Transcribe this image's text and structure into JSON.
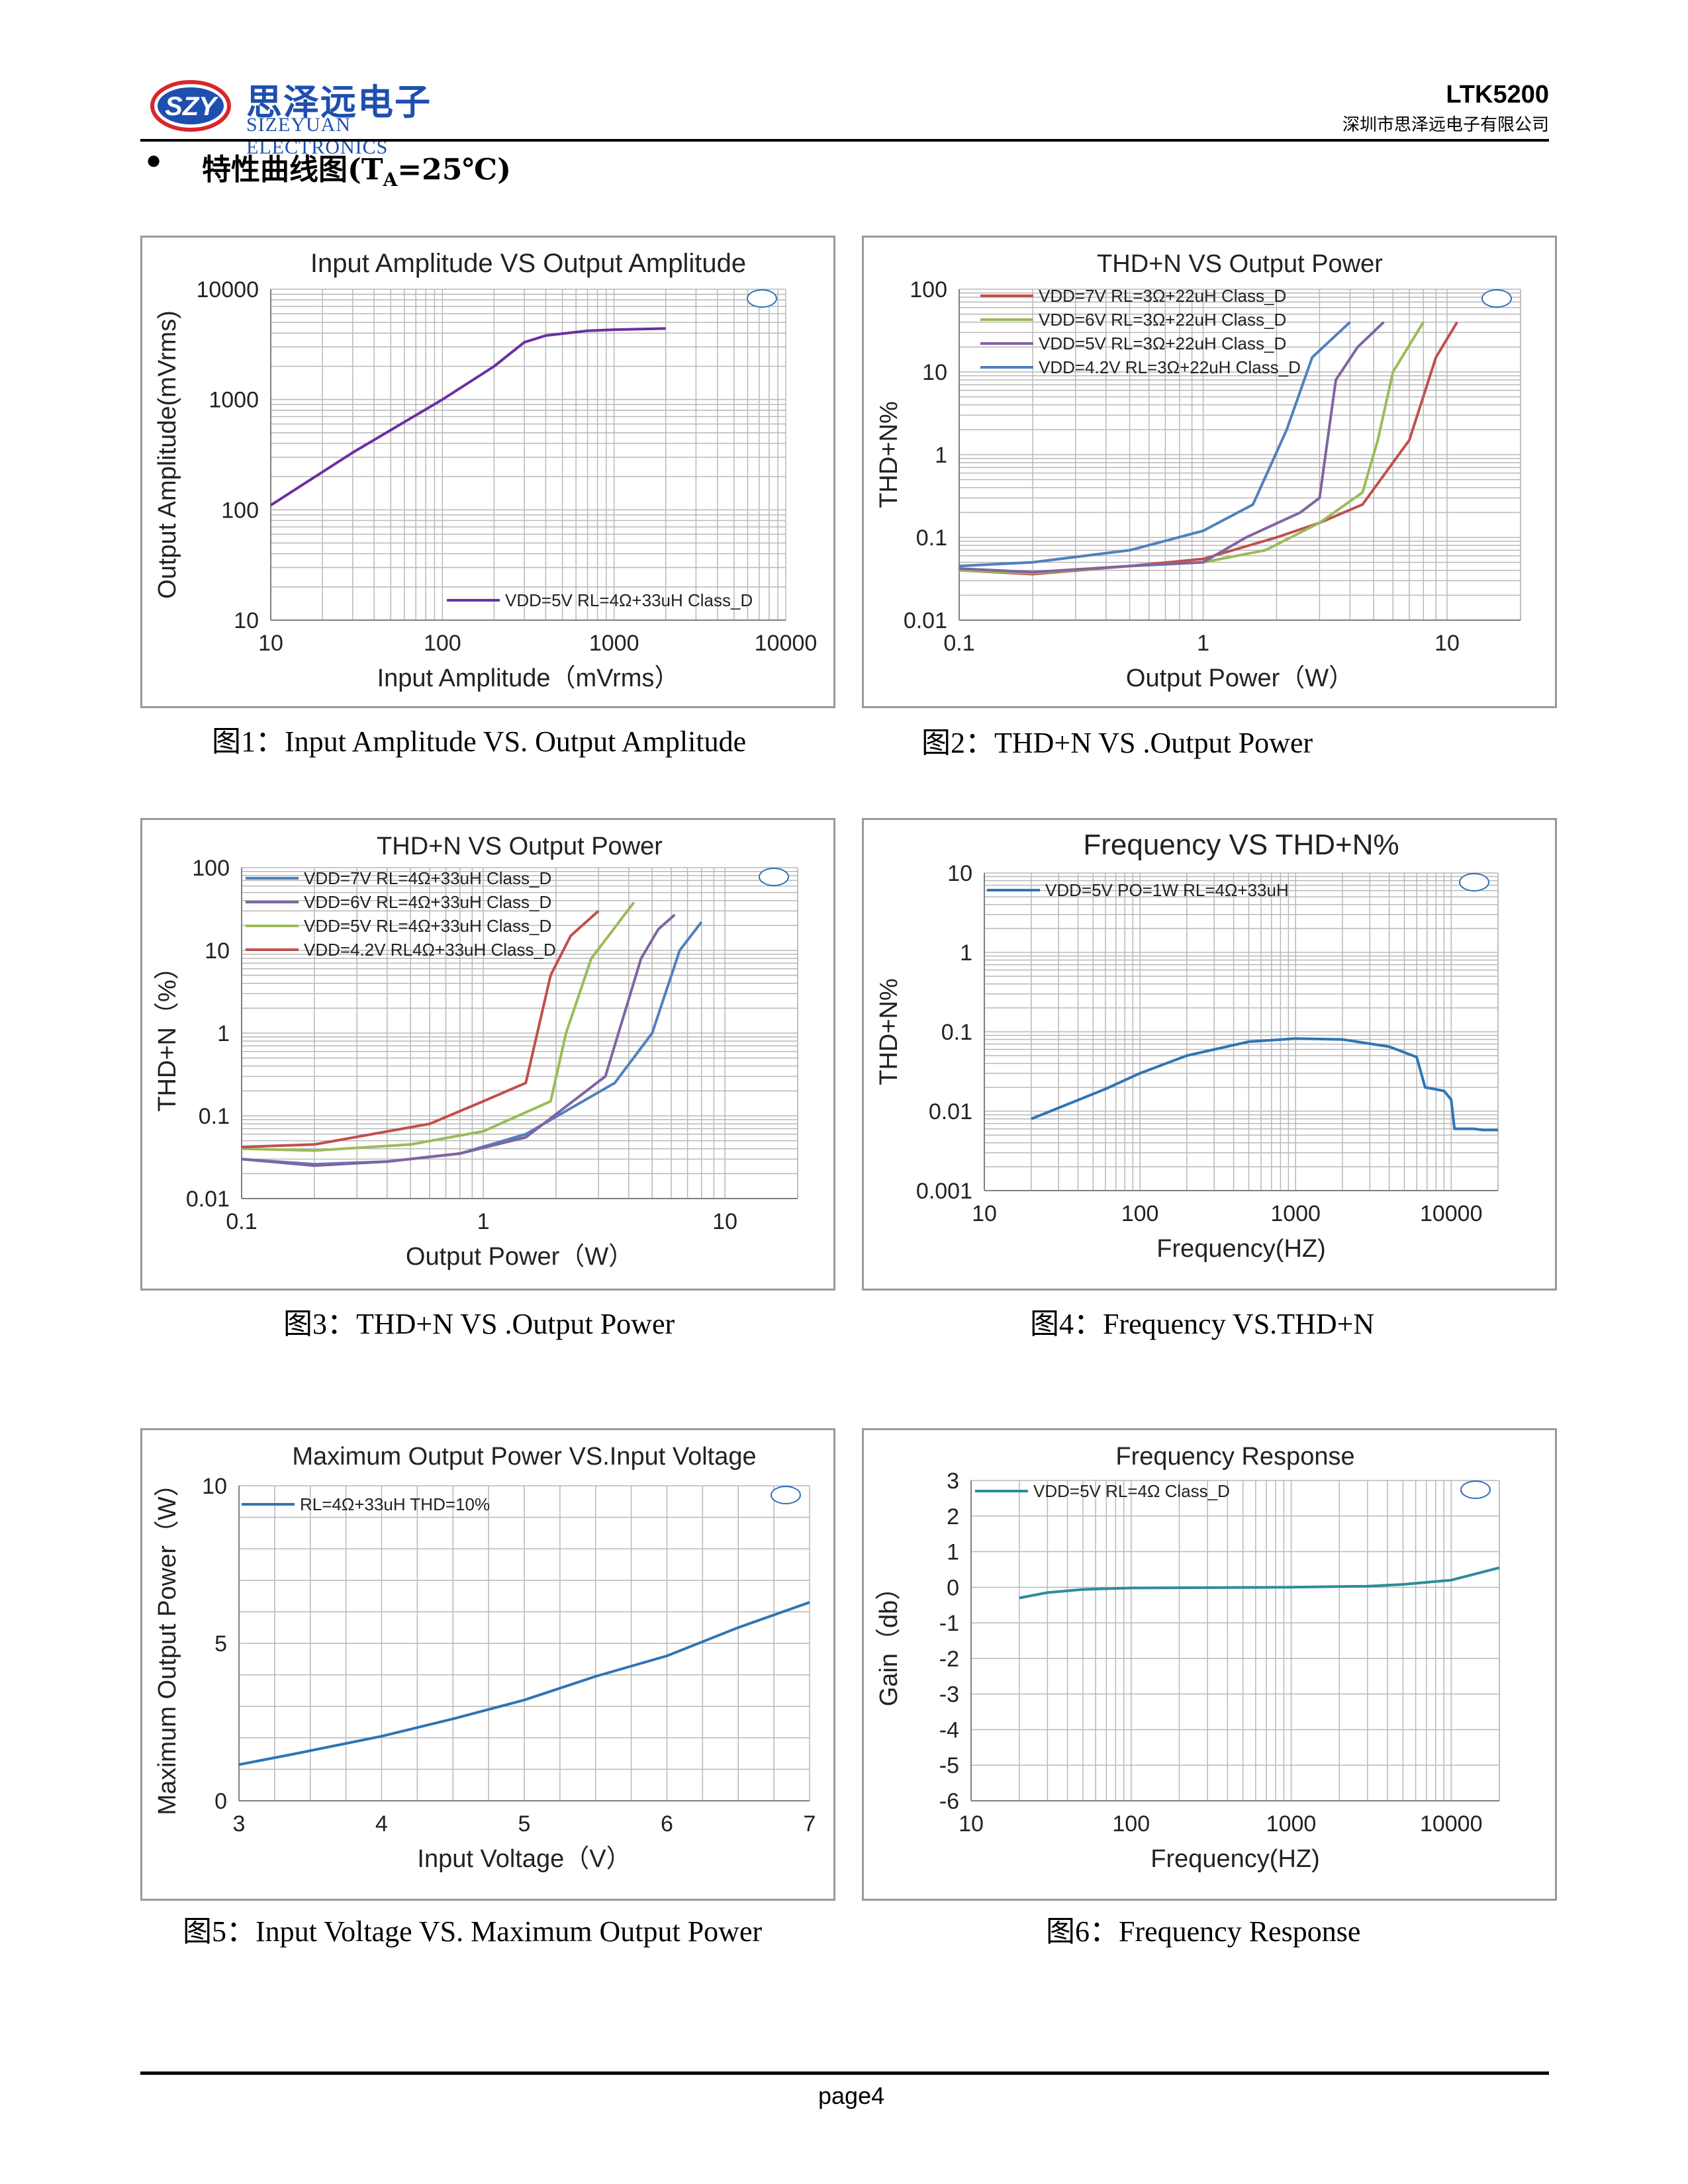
{
  "header": {
    "logo_mark": "SZY",
    "logo_cn": "思泽远电子",
    "logo_en": "SIZEYUAN ELECTRONICS",
    "model": "LTK5200",
    "company": "深圳市思泽远电子有限公司"
  },
  "section": {
    "bullet": "●",
    "title": "特性曲线图(T",
    "title_sub": "A",
    "title_end": "=25℃)"
  },
  "captions": [
    "图1：Input Amplitude VS. Output Amplitude",
    "图2：THD+N VS .Output Power",
    "图3：THD+N VS .Output Power",
    "图4：Frequency VS.THD+N",
    "图5：Input Voltage VS. Maximum Output Power",
    "图6：Frequency Response"
  ],
  "footer": {
    "page": "page4"
  },
  "colors": {
    "logo_blue": "#1f4fae",
    "logo_red": "#d9262c",
    "grid": "#b0b0b0"
  },
  "chart_data": [
    {
      "type": "line",
      "title": "Input Amplitude VS Output Amplitude",
      "xlabel": "Input  Amplitude（mVrms）",
      "ylabel": "Output Amplitude(mVrms)",
      "xscale": "log",
      "yscale": "log",
      "xlim": [
        10,
        10000
      ],
      "ylim": [
        10,
        10000
      ],
      "xticks": [
        "10",
        "100",
        "1000",
        "10000"
      ],
      "yticks": [
        "10",
        "100",
        "1000",
        "10000"
      ],
      "grid": true,
      "legend_position": "bottom-right",
      "series": [
        {
          "name": "VDD=5V RL=4Ω+33uH Class_D",
          "color": "#6a2fa0",
          "points": [
            [
              10,
              110
            ],
            [
              30,
              330
            ],
            [
              100,
              1000
            ],
            [
              200,
              2000
            ],
            [
              300,
              3300
            ],
            [
              400,
              3800
            ],
            [
              700,
              4200
            ],
            [
              1000,
              4300
            ],
            [
              2000,
              4400
            ]
          ]
        }
      ]
    },
    {
      "type": "line",
      "title": "THD+N VS Output Power",
      "xlabel": "Output Power（W）",
      "ylabel": "THD+N%",
      "xscale": "log",
      "yscale": "log",
      "xlim": [
        0.1,
        20
      ],
      "ylim": [
        0.01,
        100
      ],
      "xticks": [
        "0.1",
        "1",
        "10"
      ],
      "yticks": [
        "0.01",
        "0.1",
        "1",
        "10",
        "100"
      ],
      "grid": true,
      "legend_position": "top-left",
      "series": [
        {
          "name": "VDD=7V  RL=3Ω+22uH Class_D",
          "color": "#c0504d",
          "points": [
            [
              0.1,
              0.04
            ],
            [
              0.2,
              0.036
            ],
            [
              0.5,
              0.045
            ],
            [
              1,
              0.055
            ],
            [
              2,
              0.1
            ],
            [
              3,
              0.15
            ],
            [
              4.5,
              0.25
            ],
            [
              7,
              1.5
            ],
            [
              9,
              15
            ],
            [
              11,
              40
            ]
          ]
        },
        {
          "name": "VDD=6V  RL=3Ω+22uH Class_D",
          "color": "#9bbb59",
          "points": [
            [
              0.1,
              0.04
            ],
            [
              0.2,
              0.037
            ],
            [
              0.5,
              0.045
            ],
            [
              1,
              0.05
            ],
            [
              1.8,
              0.07
            ],
            [
              3,
              0.15
            ],
            [
              4.5,
              0.35
            ],
            [
              5.2,
              1.5
            ],
            [
              6,
              10
            ],
            [
              8,
              40
            ]
          ]
        },
        {
          "name": "VDD=5V  RL=3Ω+22uH Class_D",
          "color": "#8064a2",
          "points": [
            [
              0.1,
              0.042
            ],
            [
              0.2,
              0.038
            ],
            [
              0.5,
              0.045
            ],
            [
              1,
              0.05
            ],
            [
              1.5,
              0.1
            ],
            [
              2.5,
              0.2
            ],
            [
              3,
              0.3
            ],
            [
              3.5,
              8
            ],
            [
              4.3,
              20
            ],
            [
              5.5,
              40
            ]
          ]
        },
        {
          "name": "VDD=4.2V  RL=3Ω+22uH Class_D",
          "color": "#4f81bd",
          "points": [
            [
              0.1,
              0.045
            ],
            [
              0.2,
              0.05
            ],
            [
              0.5,
              0.07
            ],
            [
              1,
              0.12
            ],
            [
              1.6,
              0.25
            ],
            [
              2.2,
              2
            ],
            [
              2.8,
              15
            ],
            [
              4,
              40
            ]
          ]
        }
      ]
    },
    {
      "type": "line",
      "title": "THD+N VS Output Power",
      "xlabel": "Output Power（W）",
      "ylabel": "THD+N（%）",
      "xscale": "log",
      "yscale": "log",
      "xlim": [
        0.1,
        20
      ],
      "ylim": [
        0.01,
        100
      ],
      "xticks": [
        "0.1",
        "1",
        "10"
      ],
      "yticks": [
        "0.01",
        "0.1",
        "1",
        "10",
        "100"
      ],
      "grid": true,
      "legend_position": "top-left",
      "series": [
        {
          "name": "VDD=7V  RL=4Ω+33uH Class_D",
          "color": "#4f81bd",
          "points": [
            [
              0.1,
              0.03
            ],
            [
              0.2,
              0.026
            ],
            [
              0.4,
              0.028
            ],
            [
              0.8,
              0.035
            ],
            [
              1.5,
              0.06
            ],
            [
              3.5,
              0.25
            ],
            [
              5,
              1
            ],
            [
              6.5,
              10
            ],
            [
              8,
              22
            ]
          ]
        },
        {
          "name": "VDD=6V  RL=4Ω+33uH Class_D",
          "color": "#8064a2",
          "points": [
            [
              0.1,
              0.03
            ],
            [
              0.2,
              0.025
            ],
            [
              0.4,
              0.028
            ],
            [
              0.8,
              0.035
            ],
            [
              1.5,
              0.055
            ],
            [
              3.2,
              0.3
            ],
            [
              4.5,
              8
            ],
            [
              5.3,
              18
            ],
            [
              6.2,
              27
            ]
          ]
        },
        {
          "name": "VDD=5V  RL=4Ω+33uH Class_D",
          "color": "#9bbb59",
          "points": [
            [
              0.1,
              0.04
            ],
            [
              0.2,
              0.038
            ],
            [
              0.5,
              0.045
            ],
            [
              1,
              0.065
            ],
            [
              1.9,
              0.15
            ],
            [
              2.2,
              1
            ],
            [
              2.8,
              8
            ],
            [
              3.3,
              15
            ],
            [
              4.2,
              38
            ]
          ]
        },
        {
          "name": "VDD=4.2V  RL4Ω+33uH Class_D",
          "color": "#c0504d",
          "points": [
            [
              0.1,
              0.042
            ],
            [
              0.2,
              0.045
            ],
            [
              0.6,
              0.08
            ],
            [
              1,
              0.15
            ],
            [
              1.5,
              0.25
            ],
            [
              1.9,
              5
            ],
            [
              2.3,
              15
            ],
            [
              3,
              30
            ]
          ]
        }
      ]
    },
    {
      "type": "line",
      "title": "Frequency VS THD+N%",
      "xlabel": "Frequency(HZ)",
      "ylabel": "THD+N%",
      "xscale": "log",
      "yscale": "log",
      "xlim": [
        10,
        20000
      ],
      "ylim": [
        0.001,
        10
      ],
      "xticks": [
        "10",
        "100",
        "1000",
        "10000"
      ],
      "yticks": [
        "0.001",
        "0.01",
        "0.1",
        "1",
        "10"
      ],
      "grid": true,
      "legend_position": "top-left",
      "series": [
        {
          "name": "VDD=5V  PO=1W RL=4Ω+33uH",
          "color": "#2e75b6",
          "points": [
            [
              20,
              0.008
            ],
            [
              30,
              0.011
            ],
            [
              60,
              0.019
            ],
            [
              100,
              0.03
            ],
            [
              200,
              0.05
            ],
            [
              500,
              0.075
            ],
            [
              1000,
              0.082
            ],
            [
              2000,
              0.08
            ],
            [
              4000,
              0.065
            ],
            [
              6000,
              0.048
            ],
            [
              6800,
              0.02
            ],
            [
              9000,
              0.018
            ],
            [
              10000,
              0.014
            ],
            [
              10500,
              0.006
            ],
            [
              14000,
              0.006
            ],
            [
              16000,
              0.0058
            ],
            [
              20000,
              0.0058
            ]
          ]
        }
      ]
    },
    {
      "type": "line",
      "title": "Maximum Output Power VS.Input Voltage",
      "xlabel": "Input Voltage（V）",
      "ylabel": "Maximum Output Power（W）",
      "xlim": [
        3,
        7
      ],
      "ylim": [
        0,
        10
      ],
      "xticks": [
        "3",
        "4",
        "5",
        "6",
        "7"
      ],
      "yticks": [
        "0",
        "5",
        "10"
      ],
      "grid": true,
      "legend_position": "top-left",
      "series": [
        {
          "name": "RL=4Ω+33uH THD=10%",
          "color": "#2e75b6",
          "points": [
            [
              3,
              1.15
            ],
            [
              3.4,
              1.5
            ],
            [
              4,
              2.05
            ],
            [
              4.5,
              2.6
            ],
            [
              5,
              3.2
            ],
            [
              5.5,
              3.95
            ],
            [
              6,
              4.6
            ],
            [
              6.5,
              5.5
            ],
            [
              7,
              6.3
            ]
          ]
        }
      ]
    },
    {
      "type": "line",
      "title": "Frequency Response",
      "xlabel": "Frequency(HZ)",
      "ylabel": "Gain（db）",
      "xscale": "log",
      "xlim": [
        10,
        20000
      ],
      "ylim": [
        -6,
        3
      ],
      "xticks": [
        "10",
        "100",
        "1000",
        "10000"
      ],
      "yticks": [
        "-6",
        "-5",
        "-4",
        "-3",
        "-2",
        "-1",
        "0",
        "1",
        "2",
        "3"
      ],
      "grid": true,
      "legend_position": "top-left",
      "series": [
        {
          "name": "VDD=5V RL=4Ω Class_D",
          "color": "#2e8b9a",
          "points": [
            [
              20,
              -0.3
            ],
            [
              30,
              -0.15
            ],
            [
              50,
              -0.06
            ],
            [
              100,
              -0.02
            ],
            [
              1000,
              0
            ],
            [
              3000,
              0.03
            ],
            [
              5000,
              0.08
            ],
            [
              10000,
              0.2
            ],
            [
              20000,
              0.55
            ]
          ]
        }
      ]
    }
  ]
}
